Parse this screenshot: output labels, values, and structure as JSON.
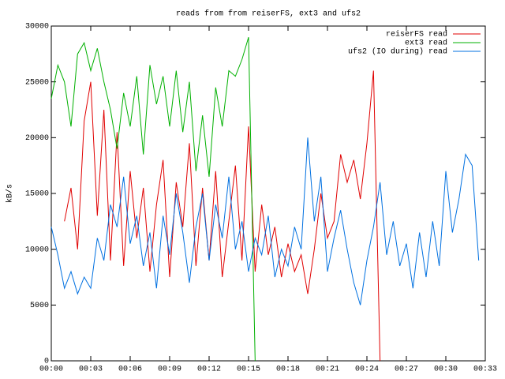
{
  "chart_data": {
    "type": "line",
    "title": "reads from from reiserFS, ext3 and ufs2",
    "y_label": "kB/s",
    "x": [
      0,
      0.5,
      1,
      1.5,
      2,
      2.5,
      3,
      3.5,
      4,
      4.5,
      5,
      5.5,
      6,
      6.5,
      7,
      7.5,
      8,
      8.5,
      9,
      9.5,
      10,
      10.5,
      11,
      11.5,
      12,
      12.5,
      13,
      13.5,
      14,
      14.5,
      15,
      15.5,
      16,
      16.5,
      17,
      17.5,
      18,
      18.5,
      19,
      19.5,
      20,
      20.5,
      21,
      21.5,
      22,
      22.5,
      23,
      23.5,
      24,
      24.5,
      25,
      25.5,
      26,
      26.5,
      27,
      27.5,
      28,
      28.5,
      29,
      29.5,
      30,
      30.5,
      31,
      31.5,
      32,
      32.5
    ],
    "series": [
      {
        "name": "reiserFS read",
        "color": "#e00000",
        "values": [
          null,
          null,
          12500,
          15500,
          10000,
          21500,
          25000,
          13000,
          22500,
          9000,
          20500,
          8500,
          17000,
          11000,
          15500,
          8000,
          14000,
          18000,
          7500,
          16000,
          12000,
          19500,
          8500,
          15500,
          9000,
          17000,
          7500,
          12500,
          17500,
          9000,
          21000,
          8000,
          14000,
          9500,
          12000,
          7500,
          10500,
          8000,
          9500,
          6000,
          10000,
          15000,
          11000,
          12500,
          18500,
          16000,
          18000,
          14500,
          19500,
          26000,
          0,
          null,
          null,
          null,
          null,
          null,
          null,
          null,
          null,
          null,
          null,
          null,
          null,
          null,
          null,
          null
        ]
      },
      {
        "name": "ext3 read",
        "color": "#00b000",
        "values": [
          23500,
          26500,
          25000,
          21000,
          27500,
          28500,
          26000,
          28000,
          25000,
          22500,
          19000,
          24000,
          21000,
          25500,
          18500,
          26500,
          23000,
          25500,
          21000,
          26000,
          20500,
          25000,
          17000,
          22000,
          16500,
          24500,
          21000,
          26000,
          25500,
          27000,
          29000,
          0,
          null,
          null,
          null,
          null,
          null,
          null,
          null,
          null,
          null,
          null,
          null,
          null,
          null,
          null,
          null,
          null,
          null,
          null,
          null,
          null,
          null,
          null,
          null,
          null,
          null,
          null,
          null,
          null,
          null,
          null,
          null,
          null,
          null,
          null
        ]
      },
      {
        "name": "ufs2 (IO during) read",
        "color": "#0070e0",
        "values": [
          12000,
          9500,
          6500,
          8000,
          6000,
          7500,
          6500,
          11000,
          9000,
          14000,
          12000,
          16500,
          10500,
          13000,
          8500,
          11500,
          6500,
          13000,
          9500,
          15000,
          11500,
          7000,
          12000,
          15000,
          9000,
          14000,
          11000,
          16500,
          10000,
          12500,
          8000,
          11000,
          9500,
          13000,
          7500,
          10000,
          8500,
          12000,
          10000,
          20000,
          12500,
          16500,
          8000,
          11000,
          13500,
          10000,
          7000,
          5000,
          9000,
          12000,
          16000,
          9500,
          12500,
          8500,
          10500,
          6500,
          11500,
          7500,
          12500,
          8500,
          17000,
          11500,
          14500,
          18500,
          17500,
          9000
        ]
      }
    ],
    "xlim": [
      0,
      33
    ],
    "xticks": [
      {
        "value": 0,
        "label": "00:00"
      },
      {
        "value": 3,
        "label": "00:03"
      },
      {
        "value": 6,
        "label": "00:06"
      },
      {
        "value": 9,
        "label": "00:09"
      },
      {
        "value": 12,
        "label": "00:12"
      },
      {
        "value": 15,
        "label": "00:15"
      },
      {
        "value": 18,
        "label": "00:18"
      },
      {
        "value": 21,
        "label": "00:21"
      },
      {
        "value": 24,
        "label": "00:24"
      },
      {
        "value": 27,
        "label": "00:27"
      },
      {
        "value": 30,
        "label": "00:30"
      },
      {
        "value": 33,
        "label": "00:33"
      }
    ],
    "ylim": [
      0,
      30000
    ],
    "yticks": [
      0,
      5000,
      10000,
      15000,
      20000,
      25000,
      30000
    ],
    "legend": "top-right"
  }
}
